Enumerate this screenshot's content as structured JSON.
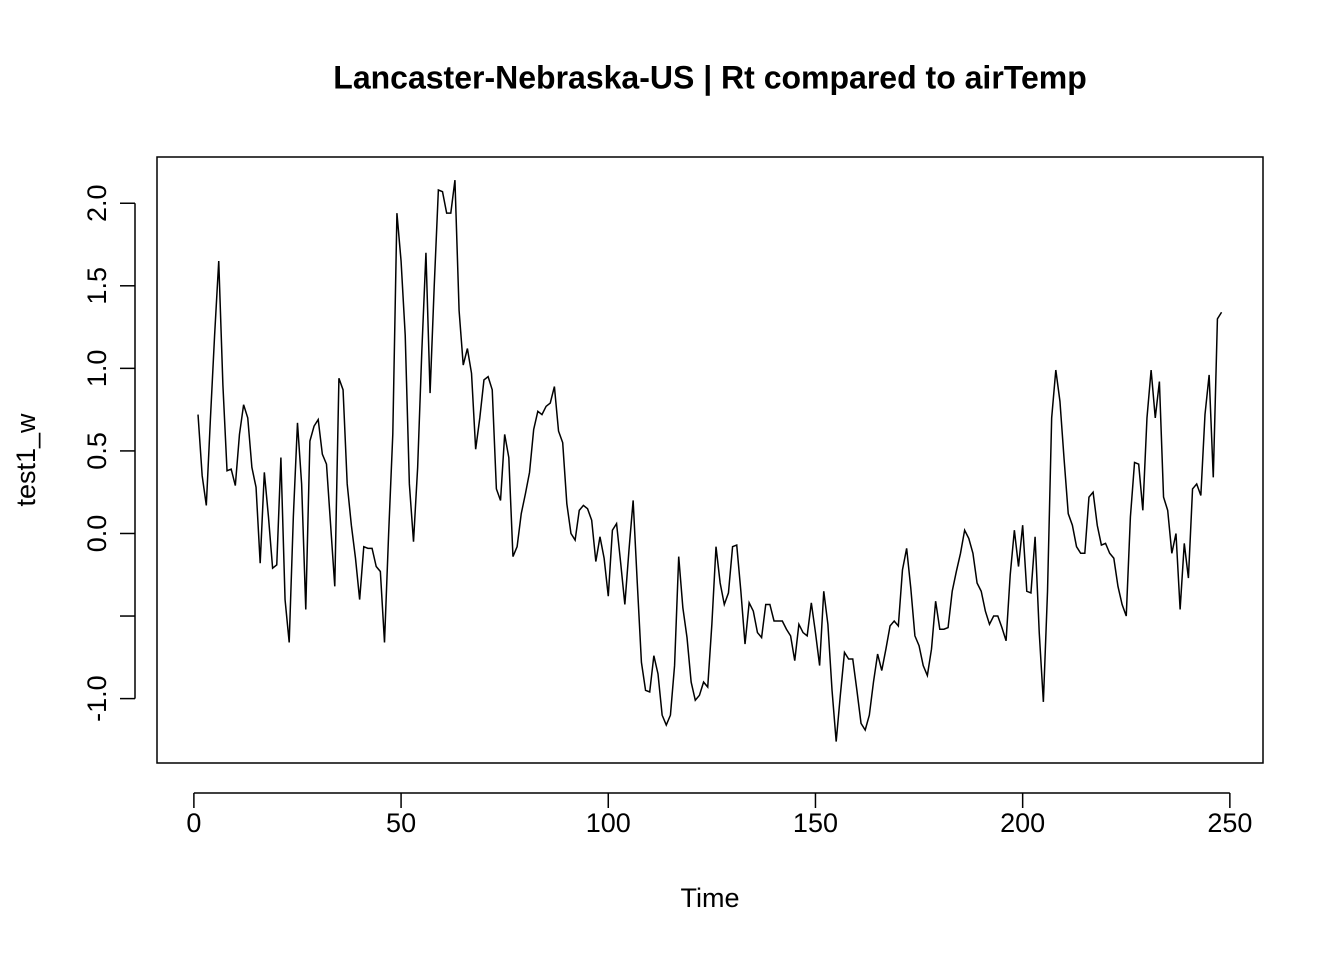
{
  "chart_data": {
    "type": "line",
    "title": "Lancaster-Nebraska-US | Rt compared to airTemp",
    "x_label": "Time",
    "y_label": "test1_w",
    "color": "#000000",
    "x": [
      1,
      2,
      3,
      4,
      5,
      6,
      7,
      8,
      9,
      10,
      11,
      12,
      13,
      14,
      15,
      16,
      17,
      18,
      19,
      20,
      21,
      22,
      23,
      24,
      25,
      26,
      27,
      28,
      29,
      30,
      31,
      32,
      33,
      34,
      35,
      36,
      37,
      38,
      39,
      40,
      41,
      42,
      43,
      44,
      45,
      46,
      47,
      48,
      49,
      50,
      51,
      52,
      53,
      54,
      55,
      56,
      57,
      58,
      59,
      60,
      61,
      62,
      63,
      64,
      65,
      66,
      67,
      68,
      69,
      70,
      71,
      72,
      73,
      74,
      75,
      76,
      77,
      78,
      79,
      80,
      81,
      82,
      83,
      84,
      85,
      86,
      87,
      88,
      89,
      90,
      91,
      92,
      93,
      94,
      95,
      96,
      97,
      98,
      99,
      100,
      101,
      102,
      103,
      104,
      105,
      106,
      107,
      108,
      109,
      110,
      111,
      112,
      113,
      114,
      115,
      116,
      117,
      118,
      119,
      120,
      121,
      122,
      123,
      124,
      125,
      126,
      127,
      128,
      129,
      130,
      131,
      132,
      133,
      134,
      135,
      136,
      137,
      138,
      139,
      140,
      141,
      142,
      143,
      144,
      145,
      146,
      147,
      148,
      149,
      150,
      151,
      152,
      153,
      154,
      155,
      156,
      157,
      158,
      159,
      160,
      161,
      162,
      163,
      164,
      165,
      166,
      167,
      168,
      169,
      170,
      171,
      172,
      173,
      174,
      175,
      176,
      177,
      178,
      179,
      180,
      181,
      182,
      183,
      184,
      185,
      186,
      187,
      188,
      189,
      190,
      191,
      192,
      193,
      194,
      195,
      196,
      197,
      198,
      199,
      200,
      201,
      202,
      203,
      204,
      205,
      206,
      207,
      208,
      209,
      210,
      211,
      212,
      213,
      214,
      215,
      216,
      217,
      218,
      219,
      220,
      221,
      222,
      223,
      224,
      225,
      226,
      227,
      228,
      229,
      230,
      231,
      232,
      233,
      234,
      235,
      236,
      237,
      238,
      239,
      240,
      241,
      242,
      243,
      244,
      245,
      246,
      247,
      248
    ],
    "values": [
      0.72,
      0.35,
      0.17,
      0.7,
      1.2,
      1.65,
      0.9,
      0.38,
      0.39,
      0.29,
      0.6,
      0.78,
      0.7,
      0.4,
      0.28,
      -0.18,
      0.37,
      0.1,
      -0.21,
      -0.19,
      0.46,
      -0.4,
      -0.66,
      0.1,
      0.67,
      0.3,
      -0.46,
      0.56,
      0.65,
      0.69,
      0.48,
      0.42,
      0.05,
      -0.32,
      0.94,
      0.87,
      0.3,
      0.05,
      -0.15,
      -0.4,
      -0.08,
      -0.09,
      -0.09,
      -0.2,
      -0.23,
      -0.66,
      0.0,
      0.6,
      1.94,
      1.65,
      1.2,
      0.3,
      -0.05,
      0.4,
      1.1,
      1.7,
      0.85,
      1.5,
      2.08,
      2.07,
      1.94,
      1.94,
      2.14,
      1.35,
      1.02,
      1.12,
      0.97,
      0.51,
      0.7,
      0.93,
      0.95,
      0.87,
      0.27,
      0.2,
      0.6,
      0.46,
      -0.14,
      -0.08,
      0.12,
      0.24,
      0.37,
      0.63,
      0.74,
      0.72,
      0.77,
      0.79,
      0.89,
      0.62,
      0.55,
      0.18,
      0.0,
      -0.04,
      0.14,
      0.17,
      0.15,
      0.08,
      -0.17,
      -0.02,
      -0.15,
      -0.38,
      0.02,
      0.06,
      -0.18,
      -0.43,
      -0.1,
      0.2,
      -0.3,
      -0.78,
      -0.95,
      -0.96,
      -0.74,
      -0.85,
      -1.1,
      -1.16,
      -1.1,
      -0.8,
      -0.14,
      -0.45,
      -0.63,
      -0.9,
      -1.01,
      -0.98,
      -0.9,
      -0.93,
      -0.55,
      -0.08,
      -0.3,
      -0.43,
      -0.36,
      -0.08,
      -0.07,
      -0.35,
      -0.67,
      -0.42,
      -0.47,
      -0.6,
      -0.63,
      -0.43,
      -0.43,
      -0.53,
      -0.53,
      -0.53,
      -0.58,
      -0.62,
      -0.77,
      -0.55,
      -0.6,
      -0.62,
      -0.42,
      -0.6,
      -0.8,
      -0.35,
      -0.55,
      -0.95,
      -1.26,
      -0.98,
      -0.72,
      -0.76,
      -0.76,
      -0.95,
      -1.15,
      -1.19,
      -1.1,
      -0.9,
      -0.73,
      -0.83,
      -0.7,
      -0.56,
      -0.53,
      -0.56,
      -0.22,
      -0.09,
      -0.33,
      -0.62,
      -0.68,
      -0.8,
      -0.86,
      -0.7,
      -0.41,
      -0.58,
      -0.58,
      -0.57,
      -0.35,
      -0.23,
      -0.12,
      0.02,
      -0.03,
      -0.12,
      -0.3,
      -0.35,
      -0.47,
      -0.55,
      -0.5,
      -0.5,
      -0.57,
      -0.65,
      -0.25,
      0.02,
      -0.2,
      0.05,
      -0.35,
      -0.36,
      -0.02,
      -0.6,
      -1.02,
      -0.35,
      0.7,
      0.99,
      0.8,
      0.45,
      0.12,
      0.05,
      -0.08,
      -0.12,
      -0.12,
      0.22,
      0.25,
      0.05,
      -0.07,
      -0.06,
      -0.12,
      -0.15,
      -0.32,
      -0.43,
      -0.5,
      0.1,
      0.43,
      0.42,
      0.14,
      0.7,
      0.99,
      0.7,
      0.92,
      0.22,
      0.14,
      -0.12,
      0.0,
      -0.46,
      -0.06,
      -0.27,
      0.27,
      0.3,
      0.23,
      0.72,
      0.96,
      0.34,
      1.3,
      1.34
    ],
    "xlim": [
      -8.9,
      258
    ],
    "xticks": [
      0,
      50,
      100,
      150,
      200,
      250
    ],
    "ylim": [
      -1.39,
      2.28
    ],
    "yticks": [
      {
        "value": -1,
        "label": "-1.0"
      },
      {
        "value": -0.5,
        "label": null
      },
      {
        "value": 0,
        "label": "0.0"
      },
      {
        "value": 0.5,
        "label": "0.5"
      },
      {
        "value": 1,
        "label": "1.0"
      },
      {
        "value": 1.5,
        "label": "1.5"
      },
      {
        "value": 2,
        "label": "2.0"
      }
    ],
    "grid": false
  }
}
